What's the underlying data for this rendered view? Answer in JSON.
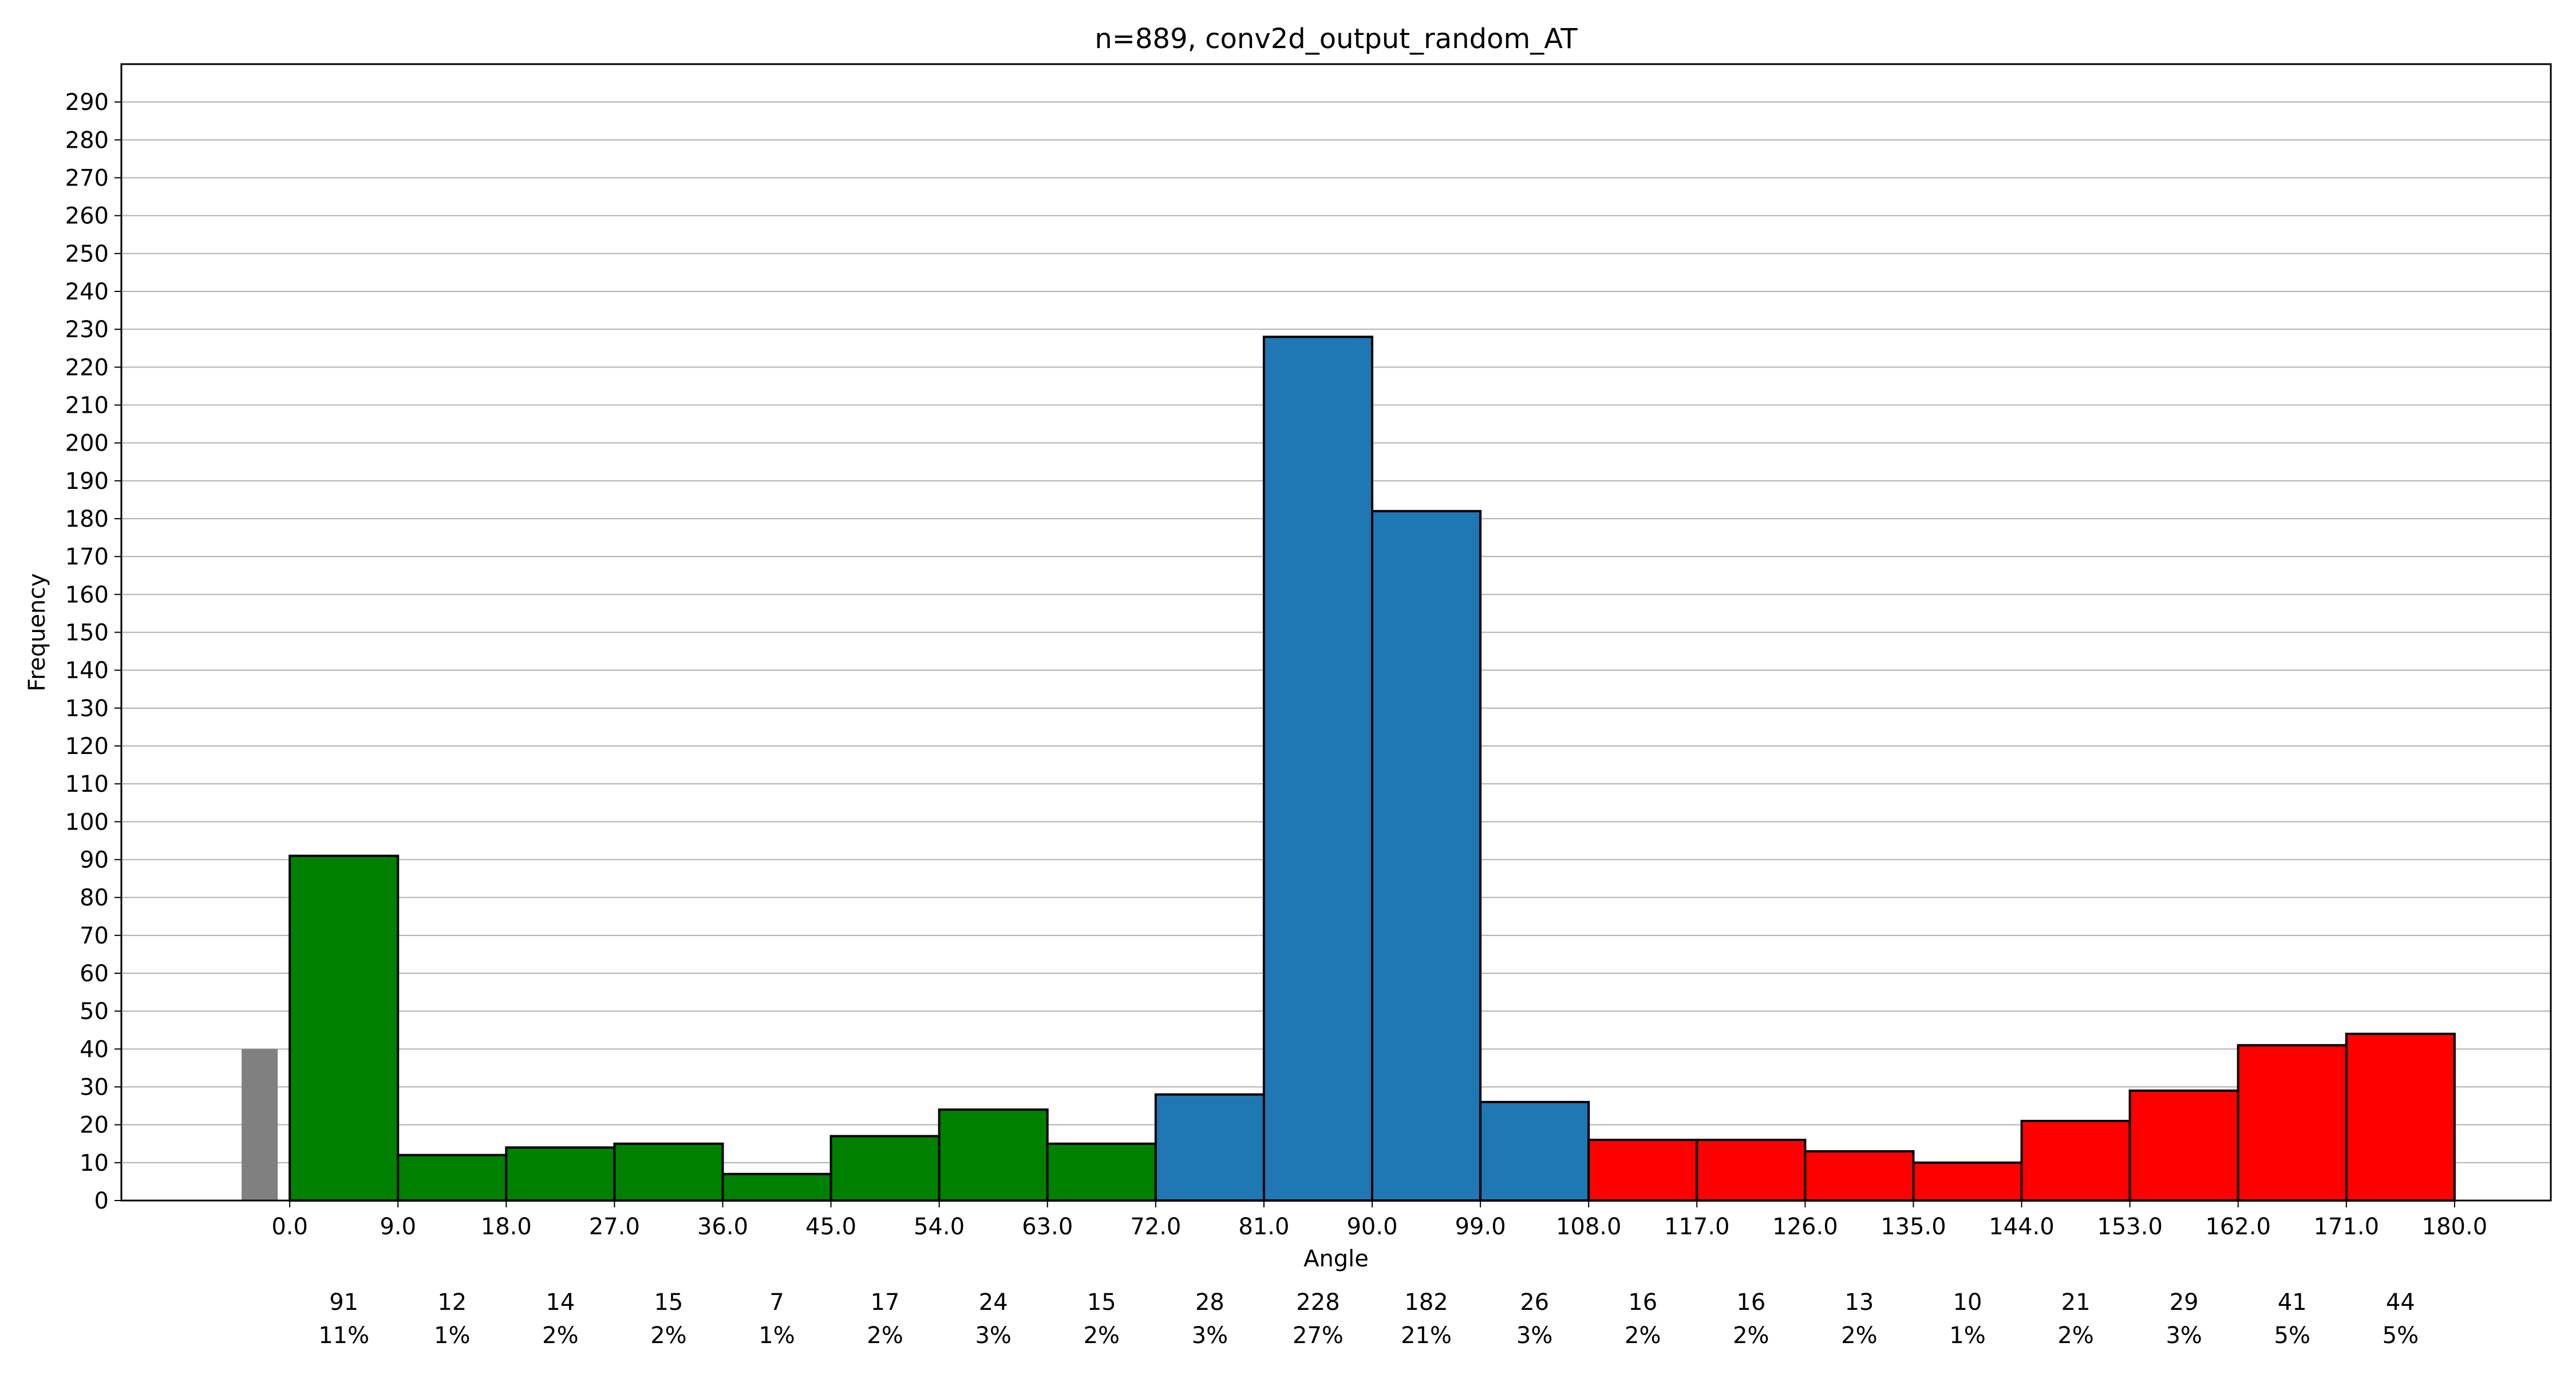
{
  "chart_data": {
    "type": "bar",
    "title": "n=889, conv2d_output_random_AT",
    "xlabel": "Angle",
    "ylabel": "Frequency",
    "ylim": [
      0,
      300
    ],
    "yticks": [
      0,
      10,
      20,
      30,
      40,
      50,
      60,
      70,
      80,
      90,
      100,
      110,
      120,
      130,
      140,
      150,
      160,
      170,
      180,
      190,
      200,
      210,
      220,
      230,
      240,
      250,
      260,
      270,
      280,
      290
    ],
    "xlim": [
      -14,
      188
    ],
    "grid": "horizontal",
    "bin_edges": [
      0.0,
      9.0,
      18.0,
      27.0,
      36.0,
      45.0,
      54.0,
      63.0,
      72.0,
      81.0,
      90.0,
      99.0,
      108.0,
      117.0,
      126.0,
      135.0,
      144.0,
      153.0,
      162.0,
      171.0,
      180.0
    ],
    "xtick_labels": [
      "0.0",
      "9.0",
      "18.0",
      "27.0",
      "36.0",
      "45.0",
      "54.0",
      "63.0",
      "72.0",
      "81.0",
      "90.0",
      "99.0",
      "108.0",
      "117.0",
      "126.0",
      "135.0",
      "144.0",
      "153.0",
      "162.0",
      "171.0",
      "180.0"
    ],
    "values": [
      91,
      12,
      14,
      15,
      7,
      17,
      24,
      15,
      28,
      228,
      182,
      26,
      16,
      16,
      13,
      10,
      21,
      29,
      41,
      44
    ],
    "count_labels": [
      "91",
      "12",
      "14",
      "15",
      "7",
      "17",
      "24",
      "15",
      "28",
      "228",
      "182",
      "26",
      "16",
      "16",
      "13",
      "10",
      "21",
      "29",
      "41",
      "44"
    ],
    "percent_labels": [
      "11%",
      "1%",
      "2%",
      "2%",
      "1%",
      "2%",
      "3%",
      "2%",
      "3%",
      "27%",
      "21%",
      "3%",
      "2%",
      "2%",
      "2%",
      "1%",
      "2%",
      "3%",
      "5%",
      "5%"
    ],
    "bin_colors": [
      "#008000",
      "#008000",
      "#008000",
      "#008000",
      "#008000",
      "#008000",
      "#008000",
      "#008000",
      "#1f77b4",
      "#1f77b4",
      "#1f77b4",
      "#1f77b4",
      "#ff0000",
      "#ff0000",
      "#ff0000",
      "#ff0000",
      "#ff0000",
      "#ff0000",
      "#ff0000",
      "#ff0000"
    ],
    "extra_bar": {
      "x_start": -4,
      "x_end": -1,
      "value": 40,
      "color": "#808080"
    }
  }
}
